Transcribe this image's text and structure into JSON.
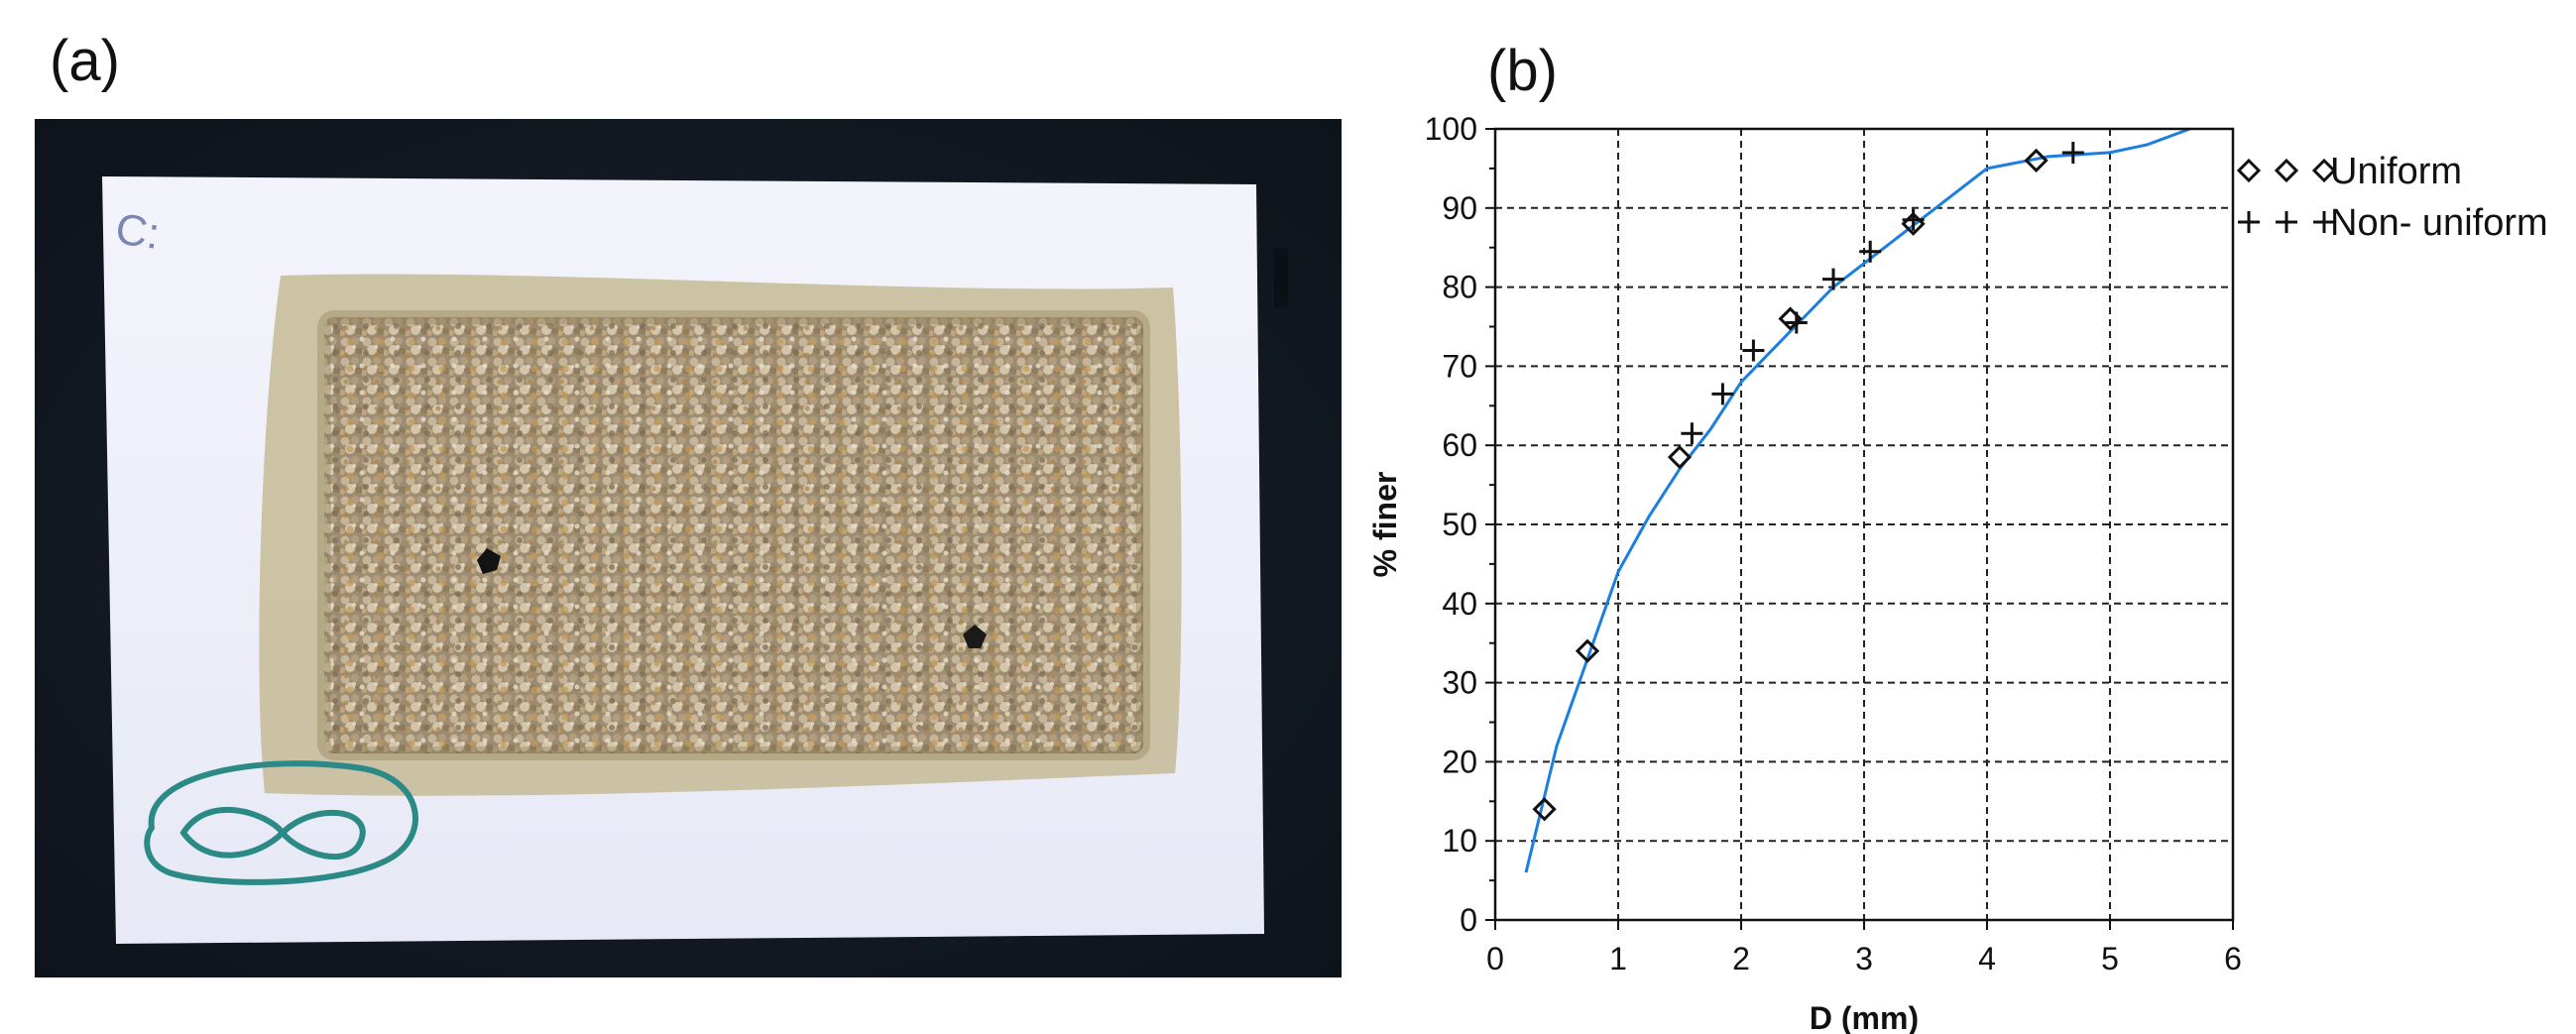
{
  "panels": {
    "a": {
      "label": "(a)",
      "sample_mark": "C:"
    },
    "b": {
      "label": "(b)"
    }
  },
  "chart_data": {
    "type": "scatter",
    "xlabel": "D (mm)",
    "ylabel": "% finer",
    "xlim": [
      0,
      6
    ],
    "ylim": [
      0,
      100
    ],
    "xticks": [
      0,
      1,
      2,
      3,
      4,
      5,
      6
    ],
    "yticks": [
      0,
      10,
      20,
      30,
      40,
      50,
      60,
      70,
      80,
      90,
      100
    ],
    "grid": "dashed",
    "legend_position": "right-top outside",
    "curve": {
      "color": "#1a7fe0",
      "x": [
        0.25,
        0.5,
        0.75,
        1.0,
        1.25,
        1.5,
        1.75,
        2.0,
        2.25,
        2.5,
        2.75,
        3.0,
        3.25,
        3.5,
        3.75,
        4.0,
        4.5,
        5.0,
        5.3,
        5.65
      ],
      "y": [
        6,
        22,
        33,
        44,
        51,
        57,
        62,
        68,
        72,
        76,
        80,
        83,
        86,
        89,
        92,
        95,
        96.5,
        97,
        98,
        100
      ]
    },
    "series": [
      {
        "name": "Uniform",
        "marker": "diamond",
        "x": [
          0.4,
          0.75,
          1.5,
          2.4,
          3.4,
          4.4
        ],
        "y": [
          14,
          34,
          58.5,
          76,
          88,
          96
        ]
      },
      {
        "name": "Non- uniform",
        "marker": "plus",
        "x": [
          1.6,
          1.85,
          2.1,
          2.45,
          2.75,
          3.05,
          3.4,
          4.7
        ],
        "y": [
          61.5,
          66.5,
          72,
          75.5,
          81,
          84.5,
          88.5,
          97
        ]
      }
    ]
  }
}
